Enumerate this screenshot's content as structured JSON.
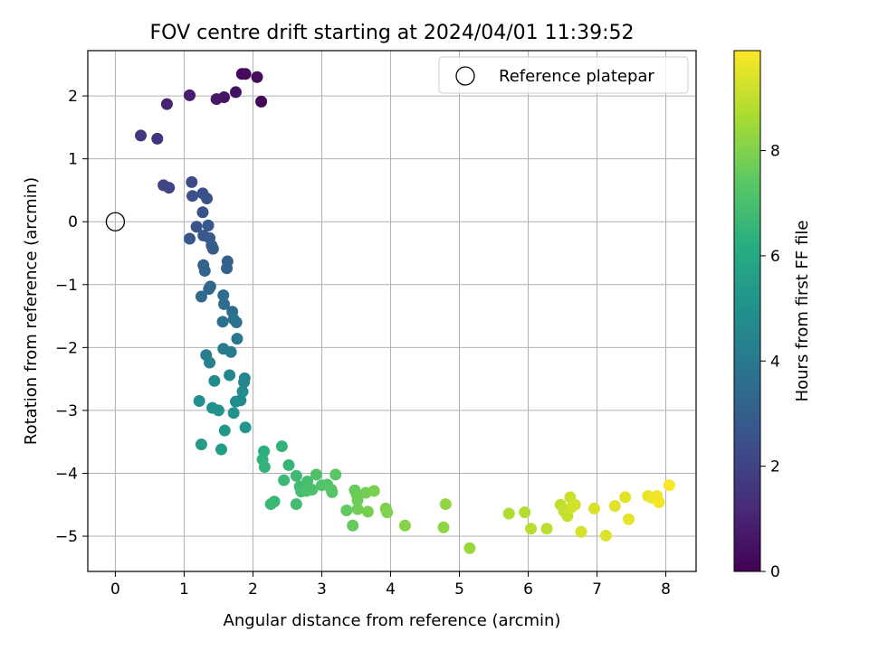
{
  "chart_data": {
    "type": "scatter",
    "title": "FOV centre drift starting at 2024/04/01 11:39:52",
    "xlabel": "Angular distance from reference (arcmin)",
    "ylabel": "Rotation from reference (arcmin)",
    "xlim": [
      -0.4,
      8.44
    ],
    "ylim": [
      -5.56,
      2.72
    ],
    "xticks": [
      0,
      1,
      2,
      3,
      4,
      5,
      6,
      7,
      8
    ],
    "yticks": [
      -5,
      -4,
      -3,
      -2,
      -1,
      0,
      1,
      2
    ],
    "grid": true,
    "legend": {
      "placement": "top-right",
      "entries": [
        "Reference platepar"
      ]
    },
    "reference_point": {
      "label": "Reference platepar",
      "x": 0,
      "y": 0
    },
    "colorbar": {
      "label": "Hours from first FF file",
      "colormap": "viridis",
      "range": [
        0,
        9.9
      ],
      "ticks": [
        0,
        2,
        4,
        6,
        8
      ]
    },
    "series": [
      {
        "name": "FOV centre drift",
        "points": [
          [
            2.12,
            1.91,
            0.1
          ],
          [
            1.84,
            2.35,
            0.2
          ],
          [
            1.89,
            2.35,
            0.25
          ],
          [
            2.06,
            2.3,
            0.3
          ],
          [
            1.75,
            2.06,
            0.45
          ],
          [
            1.58,
            1.98,
            0.55
          ],
          [
            1.47,
            1.95,
            0.65
          ],
          [
            1.08,
            2.01,
            0.8
          ],
          [
            0.75,
            1.87,
            1.0
          ],
          [
            0.61,
            1.32,
            1.5
          ],
          [
            0.37,
            1.37,
            1.6
          ],
          [
            0.7,
            0.58,
            2.0
          ],
          [
            0.78,
            0.54,
            2.1
          ],
          [
            1.11,
            0.63,
            2.3
          ],
          [
            1.12,
            0.41,
            2.4
          ],
          [
            1.27,
            0.45,
            2.45
          ],
          [
            1.33,
            0.37,
            2.5
          ],
          [
            1.27,
            0.15,
            2.55
          ],
          [
            1.18,
            -0.08,
            2.6
          ],
          [
            1.08,
            -0.27,
            2.65
          ],
          [
            1.35,
            -0.06,
            2.7
          ],
          [
            1.28,
            -0.22,
            2.8
          ],
          [
            1.37,
            -0.26,
            2.85
          ],
          [
            1.4,
            -0.38,
            2.9
          ],
          [
            1.42,
            -0.43,
            2.95
          ],
          [
            1.63,
            -0.63,
            3.1
          ],
          [
            1.62,
            -0.74,
            3.15
          ],
          [
            1.28,
            -0.69,
            3.2
          ],
          [
            1.3,
            -0.78,
            3.25
          ],
          [
            1.38,
            -1.03,
            3.3
          ],
          [
            1.36,
            -1.07,
            3.35
          ],
          [
            1.25,
            -1.19,
            3.4
          ],
          [
            1.57,
            -1.17,
            3.5
          ],
          [
            1.58,
            -1.31,
            3.55
          ],
          [
            1.7,
            -1.43,
            3.6
          ],
          [
            1.72,
            -1.55,
            3.7
          ],
          [
            1.56,
            -1.59,
            3.75
          ],
          [
            1.76,
            -1.6,
            3.8
          ],
          [
            1.77,
            -1.86,
            3.9
          ],
          [
            1.57,
            -2.02,
            4.1
          ],
          [
            1.68,
            -2.07,
            4.15
          ],
          [
            1.32,
            -2.12,
            4.2
          ],
          [
            1.37,
            -2.24,
            4.3
          ],
          [
            1.88,
            -2.49,
            4.5
          ],
          [
            1.87,
            -2.55,
            4.55
          ],
          [
            1.66,
            -2.44,
            4.6
          ],
          [
            1.44,
            -2.53,
            4.7
          ],
          [
            1.85,
            -2.7,
            4.75
          ],
          [
            1.82,
            -2.84,
            4.8
          ],
          [
            1.75,
            -2.86,
            4.85
          ],
          [
            1.22,
            -2.85,
            4.9
          ],
          [
            1.41,
            -2.96,
            5.0
          ],
          [
            1.5,
            -3.0,
            5.05
          ],
          [
            1.72,
            -3.04,
            5.1
          ],
          [
            1.89,
            -3.27,
            5.2
          ],
          [
            1.59,
            -3.32,
            5.3
          ],
          [
            1.25,
            -3.54,
            5.4
          ],
          [
            1.54,
            -3.62,
            5.45
          ],
          [
            2.16,
            -3.65,
            6.3
          ],
          [
            2.14,
            -3.78,
            6.4
          ],
          [
            2.42,
            -3.57,
            6.45
          ],
          [
            2.17,
            -3.9,
            6.5
          ],
          [
            2.52,
            -3.87,
            6.55
          ],
          [
            2.31,
            -4.45,
            6.6
          ],
          [
            2.26,
            -4.49,
            6.65
          ],
          [
            2.45,
            -4.11,
            6.7
          ],
          [
            2.63,
            -4.04,
            6.75
          ],
          [
            2.68,
            -4.21,
            6.8
          ],
          [
            2.63,
            -4.49,
            6.85
          ],
          [
            2.7,
            -4.29,
            6.9
          ],
          [
            2.79,
            -4.13,
            6.95
          ],
          [
            2.78,
            -4.28,
            7.0
          ],
          [
            2.86,
            -4.26,
            7.05
          ],
          [
            2.92,
            -4.02,
            7.1
          ],
          [
            3.0,
            -4.19,
            7.15
          ],
          [
            3.08,
            -4.18,
            7.2
          ],
          [
            3.14,
            -4.26,
            7.25
          ],
          [
            3.15,
            -4.3,
            7.3
          ],
          [
            3.2,
            -4.02,
            7.4
          ],
          [
            3.36,
            -4.59,
            7.5
          ],
          [
            3.45,
            -4.83,
            7.55
          ],
          [
            3.48,
            -4.27,
            7.6
          ],
          [
            3.52,
            -4.43,
            7.65
          ],
          [
            3.51,
            -4.34,
            7.7
          ],
          [
            3.52,
            -4.57,
            7.75
          ],
          [
            3.64,
            -4.31,
            7.8
          ],
          [
            3.67,
            -4.61,
            7.85
          ],
          [
            3.76,
            -4.28,
            7.9
          ],
          [
            3.93,
            -4.56,
            7.95
          ],
          [
            3.95,
            -4.62,
            8.0
          ],
          [
            4.21,
            -4.83,
            8.1
          ],
          [
            4.77,
            -4.86,
            8.2
          ],
          [
            4.8,
            -4.49,
            8.25
          ],
          [
            5.15,
            -5.19,
            8.4
          ],
          [
            5.72,
            -4.64,
            8.7
          ],
          [
            5.95,
            -4.62,
            8.8
          ],
          [
            6.04,
            -4.88,
            8.85
          ],
          [
            6.27,
            -4.88,
            8.9
          ],
          [
            6.47,
            -4.5,
            9.0
          ],
          [
            6.52,
            -4.6,
            9.05
          ],
          [
            6.57,
            -4.68,
            9.1
          ],
          [
            6.61,
            -4.38,
            9.15
          ],
          [
            6.63,
            -4.54,
            9.2
          ],
          [
            6.68,
            -4.5,
            9.25
          ],
          [
            6.77,
            -4.93,
            9.3
          ],
          [
            6.96,
            -4.56,
            9.35
          ],
          [
            7.13,
            -4.99,
            9.4
          ],
          [
            7.26,
            -4.52,
            9.45
          ],
          [
            7.41,
            -4.38,
            9.5
          ],
          [
            7.46,
            -4.73,
            9.55
          ],
          [
            7.74,
            -4.36,
            9.6
          ],
          [
            7.8,
            -4.39,
            9.65
          ],
          [
            7.87,
            -4.36,
            9.7
          ],
          [
            7.9,
            -4.46,
            9.75
          ],
          [
            8.05,
            -4.19,
            9.85
          ]
        ]
      }
    ]
  }
}
